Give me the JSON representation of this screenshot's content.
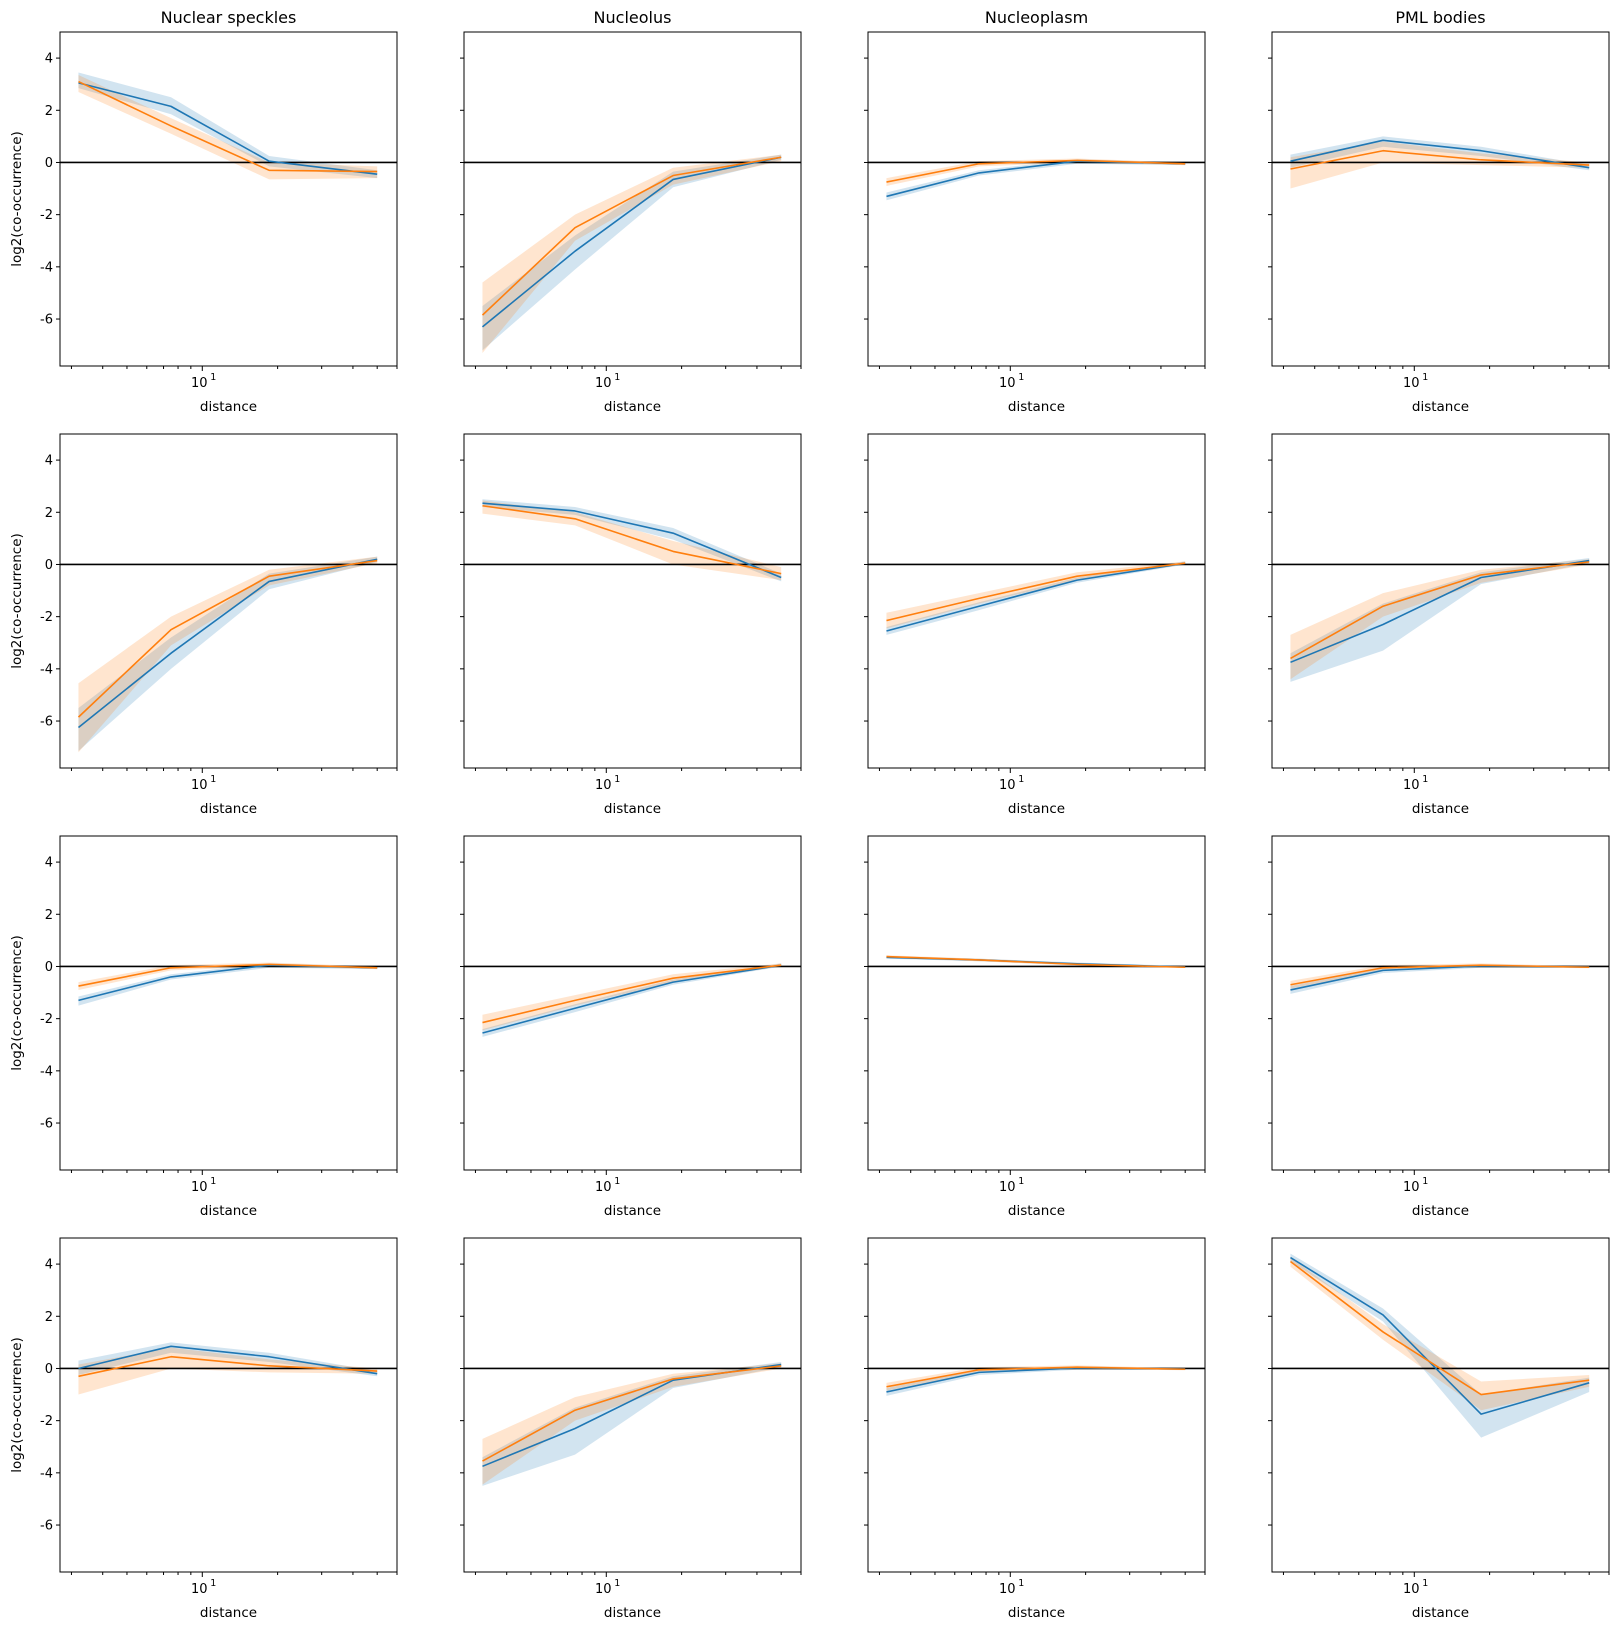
{
  "figure": {
    "columns": [
      "Nuclear speckles",
      "Nucleolus",
      "Nucleoplasm",
      "PML bodies"
    ],
    "xlabel": "distance",
    "ylabel": "log2(co-occurrence)",
    "xscale": "log",
    "xlim": [
      2.7,
      60
    ],
    "ylim": [
      -7.8,
      5.0
    ],
    "yticks": [
      -6,
      -4,
      -2,
      0,
      2,
      4
    ],
    "xtick_major": 10,
    "xtick_major_label": "10",
    "xtick_major_exp": "1",
    "reference_line_y": 0,
    "colors": {
      "blue": "#1f77b4",
      "orange": "#ff7f0e",
      "reference": "#000000"
    },
    "band_opacity": 0.2,
    "x": [
      3.2,
      7.5,
      18.5,
      50
    ]
  },
  "chart_data": [
    {
      "type": "line",
      "row": 0,
      "col": 0,
      "title": "Nuclear speckles",
      "xlabel": "distance",
      "ylabel": "log2(co-occurrence)",
      "series": [
        {
          "color": "blue",
          "y": [
            3.05,
            2.15,
            0.05,
            -0.45
          ],
          "lower": [
            2.85,
            1.85,
            -0.15,
            -0.6
          ],
          "upper": [
            3.45,
            2.5,
            0.25,
            -0.3
          ]
        },
        {
          "color": "orange",
          "y": [
            3.1,
            1.4,
            -0.3,
            -0.35
          ],
          "lower": [
            2.7,
            1.1,
            -0.65,
            -0.6
          ],
          "upper": [
            3.35,
            1.7,
            0.0,
            -0.15
          ]
        }
      ]
    },
    {
      "type": "line",
      "row": 0,
      "col": 1,
      "title": "Nucleolus",
      "xlabel": "distance",
      "ylabel": "",
      "series": [
        {
          "color": "blue",
          "y": [
            -6.3,
            -3.4,
            -0.65,
            0.2
          ],
          "lower": [
            -7.2,
            -4.1,
            -0.95,
            0.1
          ],
          "upper": [
            -5.5,
            -2.8,
            -0.35,
            0.3
          ]
        },
        {
          "color": "orange",
          "y": [
            -5.85,
            -2.5,
            -0.5,
            0.2
          ],
          "lower": [
            -7.3,
            -3.0,
            -0.85,
            0.05
          ],
          "upper": [
            -4.6,
            -2.0,
            -0.2,
            0.3
          ]
        }
      ]
    },
    {
      "type": "line",
      "row": 0,
      "col": 2,
      "title": "Nucleoplasm",
      "xlabel": "distance",
      "ylabel": "",
      "series": [
        {
          "color": "blue",
          "y": [
            -1.3,
            -0.4,
            0.05,
            -0.05
          ],
          "lower": [
            -1.45,
            -0.5,
            -0.05,
            -0.1
          ],
          "upper": [
            -1.15,
            -0.3,
            0.12,
            0.0
          ]
        },
        {
          "color": "orange",
          "y": [
            -0.75,
            -0.05,
            0.08,
            -0.05
          ],
          "lower": [
            -0.9,
            -0.15,
            0.0,
            -0.1
          ],
          "upper": [
            -0.6,
            0.05,
            0.15,
            0.0
          ]
        }
      ]
    },
    {
      "type": "line",
      "row": 0,
      "col": 3,
      "title": "PML bodies",
      "xlabel": "distance",
      "ylabel": "",
      "series": [
        {
          "color": "blue",
          "y": [
            0.05,
            0.85,
            0.45,
            -0.2
          ],
          "lower": [
            -0.2,
            0.6,
            0.25,
            -0.3
          ],
          "upper": [
            0.3,
            1.0,
            0.6,
            -0.1
          ]
        },
        {
          "color": "orange",
          "y": [
            -0.25,
            0.45,
            0.1,
            -0.1
          ],
          "lower": [
            -1.0,
            0.0,
            -0.1,
            -0.2
          ],
          "upper": [
            0.2,
            0.8,
            0.35,
            0.0
          ]
        }
      ]
    },
    {
      "type": "line",
      "row": 1,
      "col": 0,
      "title": "",
      "xlabel": "distance",
      "ylabel": "log2(co-occurrence)",
      "series": [
        {
          "color": "blue",
          "y": [
            -6.25,
            -3.4,
            -0.65,
            0.2
          ],
          "lower": [
            -7.15,
            -4.0,
            -0.95,
            0.1
          ],
          "upper": [
            -5.5,
            -2.8,
            -0.35,
            0.3
          ]
        },
        {
          "color": "orange",
          "y": [
            -5.85,
            -2.5,
            -0.45,
            0.15
          ],
          "lower": [
            -7.2,
            -3.1,
            -0.8,
            0.05
          ],
          "upper": [
            -4.55,
            -2.0,
            -0.2,
            0.3
          ]
        }
      ]
    },
    {
      "type": "line",
      "row": 1,
      "col": 1,
      "title": "",
      "xlabel": "distance",
      "ylabel": "",
      "series": [
        {
          "color": "blue",
          "y": [
            2.35,
            2.05,
            1.2,
            -0.5
          ],
          "lower": [
            2.2,
            1.9,
            0.95,
            -0.65
          ],
          "upper": [
            2.5,
            2.2,
            1.4,
            -0.35
          ]
        },
        {
          "color": "orange",
          "y": [
            2.25,
            1.75,
            0.5,
            -0.35
          ],
          "lower": [
            1.95,
            1.5,
            0.0,
            -0.6
          ],
          "upper": [
            2.45,
            2.0,
            0.9,
            -0.1
          ]
        }
      ]
    },
    {
      "type": "line",
      "row": 1,
      "col": 2,
      "title": "",
      "xlabel": "distance",
      "ylabel": "",
      "series": [
        {
          "color": "blue",
          "y": [
            -2.55,
            -1.6,
            -0.6,
            0.05
          ],
          "lower": [
            -2.7,
            -1.75,
            -0.7,
            0.0
          ],
          "upper": [
            -2.4,
            -1.45,
            -0.5,
            0.12
          ]
        },
        {
          "color": "orange",
          "y": [
            -2.15,
            -1.3,
            -0.45,
            0.05
          ],
          "lower": [
            -2.45,
            -1.5,
            -0.6,
            0.0
          ],
          "upper": [
            -1.85,
            -1.1,
            -0.3,
            0.12
          ]
        }
      ]
    },
    {
      "type": "line",
      "row": 1,
      "col": 3,
      "title": "",
      "xlabel": "distance",
      "ylabel": "",
      "series": [
        {
          "color": "blue",
          "y": [
            -3.75,
            -2.3,
            -0.5,
            0.15
          ],
          "lower": [
            -4.5,
            -3.3,
            -0.75,
            0.05
          ],
          "upper": [
            -3.4,
            -1.5,
            -0.3,
            0.25
          ]
        },
        {
          "color": "orange",
          "y": [
            -3.6,
            -1.6,
            -0.4,
            0.1
          ],
          "lower": [
            -4.4,
            -2.0,
            -0.7,
            0.0
          ],
          "upper": [
            -2.7,
            -1.1,
            -0.2,
            0.2
          ]
        }
      ]
    },
    {
      "type": "line",
      "row": 2,
      "col": 0,
      "title": "",
      "xlabel": "distance",
      "ylabel": "log2(co-occurrence)",
      "series": [
        {
          "color": "blue",
          "y": [
            -1.3,
            -0.4,
            0.05,
            -0.05
          ],
          "lower": [
            -1.5,
            -0.5,
            -0.05,
            -0.1
          ],
          "upper": [
            -1.15,
            -0.3,
            0.12,
            0.0
          ]
        },
        {
          "color": "orange",
          "y": [
            -0.75,
            -0.05,
            0.08,
            -0.05
          ],
          "lower": [
            -0.9,
            -0.15,
            0.0,
            -0.1
          ],
          "upper": [
            -0.6,
            0.05,
            0.15,
            0.0
          ]
        }
      ]
    },
    {
      "type": "line",
      "row": 2,
      "col": 1,
      "title": "",
      "xlabel": "distance",
      "ylabel": "",
      "series": [
        {
          "color": "blue",
          "y": [
            -2.55,
            -1.6,
            -0.6,
            0.05
          ],
          "lower": [
            -2.7,
            -1.75,
            -0.7,
            0.0
          ],
          "upper": [
            -2.4,
            -1.45,
            -0.5,
            0.12
          ]
        },
        {
          "color": "orange",
          "y": [
            -2.15,
            -1.3,
            -0.45,
            0.05
          ],
          "lower": [
            -2.45,
            -1.5,
            -0.6,
            0.0
          ],
          "upper": [
            -1.85,
            -1.1,
            -0.3,
            0.12
          ]
        }
      ]
    },
    {
      "type": "line",
      "row": 2,
      "col": 2,
      "title": "",
      "xlabel": "distance",
      "ylabel": "",
      "series": [
        {
          "color": "blue",
          "y": [
            0.35,
            0.25,
            0.1,
            -0.02
          ],
          "lower": [
            0.3,
            0.2,
            0.05,
            -0.05
          ],
          "upper": [
            0.4,
            0.3,
            0.15,
            0.02
          ]
        },
        {
          "color": "orange",
          "y": [
            0.38,
            0.25,
            0.08,
            -0.03
          ],
          "lower": [
            0.33,
            0.2,
            0.03,
            -0.06
          ],
          "upper": [
            0.43,
            0.3,
            0.13,
            0.0
          ]
        }
      ]
    },
    {
      "type": "line",
      "row": 2,
      "col": 3,
      "title": "",
      "xlabel": "distance",
      "ylabel": "",
      "series": [
        {
          "color": "blue",
          "y": [
            -0.9,
            -0.15,
            0.02,
            -0.02
          ],
          "lower": [
            -1.05,
            -0.25,
            -0.05,
            -0.06
          ],
          "upper": [
            -0.75,
            -0.05,
            0.08,
            0.02
          ]
        },
        {
          "color": "orange",
          "y": [
            -0.7,
            -0.05,
            0.05,
            -0.03
          ],
          "lower": [
            -0.85,
            -0.15,
            -0.02,
            -0.07
          ],
          "upper": [
            -0.55,
            0.05,
            0.12,
            0.01
          ]
        }
      ]
    },
    {
      "type": "line",
      "row": 3,
      "col": 0,
      "title": "",
      "xlabel": "distance",
      "ylabel": "log2(co-occurrence)",
      "series": [
        {
          "color": "blue",
          "y": [
            0.0,
            0.85,
            0.45,
            -0.2
          ],
          "lower": [
            -0.25,
            0.6,
            0.25,
            -0.3
          ],
          "upper": [
            0.3,
            1.0,
            0.6,
            -0.1
          ]
        },
        {
          "color": "orange",
          "y": [
            -0.3,
            0.45,
            0.1,
            -0.1
          ],
          "lower": [
            -1.0,
            0.0,
            -0.15,
            -0.2
          ],
          "upper": [
            0.15,
            0.8,
            0.35,
            0.0
          ]
        }
      ]
    },
    {
      "type": "line",
      "row": 3,
      "col": 1,
      "title": "",
      "xlabel": "distance",
      "ylabel": "",
      "series": [
        {
          "color": "blue",
          "y": [
            -3.75,
            -2.3,
            -0.45,
            0.15
          ],
          "lower": [
            -4.5,
            -3.3,
            -0.75,
            0.05
          ],
          "upper": [
            -3.4,
            -1.5,
            -0.3,
            0.25
          ]
        },
        {
          "color": "orange",
          "y": [
            -3.55,
            -1.6,
            -0.4,
            0.1
          ],
          "lower": [
            -4.45,
            -2.0,
            -0.7,
            0.0
          ],
          "upper": [
            -2.7,
            -1.1,
            -0.2,
            0.2
          ]
        }
      ]
    },
    {
      "type": "line",
      "row": 3,
      "col": 2,
      "title": "",
      "xlabel": "distance",
      "ylabel": "",
      "series": [
        {
          "color": "blue",
          "y": [
            -0.9,
            -0.15,
            0.02,
            -0.02
          ],
          "lower": [
            -1.05,
            -0.25,
            -0.05,
            -0.06
          ],
          "upper": [
            -0.75,
            -0.05,
            0.08,
            0.02
          ]
        },
        {
          "color": "orange",
          "y": [
            -0.7,
            -0.05,
            0.05,
            -0.03
          ],
          "lower": [
            -0.85,
            -0.15,
            -0.02,
            -0.07
          ],
          "upper": [
            -0.55,
            0.05,
            0.12,
            0.01
          ]
        }
      ]
    },
    {
      "type": "line",
      "row": 3,
      "col": 3,
      "title": "",
      "xlabel": "distance",
      "ylabel": "",
      "series": [
        {
          "color": "blue",
          "y": [
            4.25,
            2.05,
            -1.75,
            -0.55
          ],
          "lower": [
            4.1,
            1.8,
            -2.65,
            -0.9
          ],
          "upper": [
            4.4,
            2.3,
            -1.0,
            -0.35
          ]
        },
        {
          "color": "orange",
          "y": [
            4.1,
            1.4,
            -1.0,
            -0.45
          ],
          "lower": [
            3.9,
            1.1,
            -1.6,
            -0.7
          ],
          "upper": [
            4.25,
            1.7,
            -0.5,
            -0.25
          ]
        }
      ]
    }
  ]
}
